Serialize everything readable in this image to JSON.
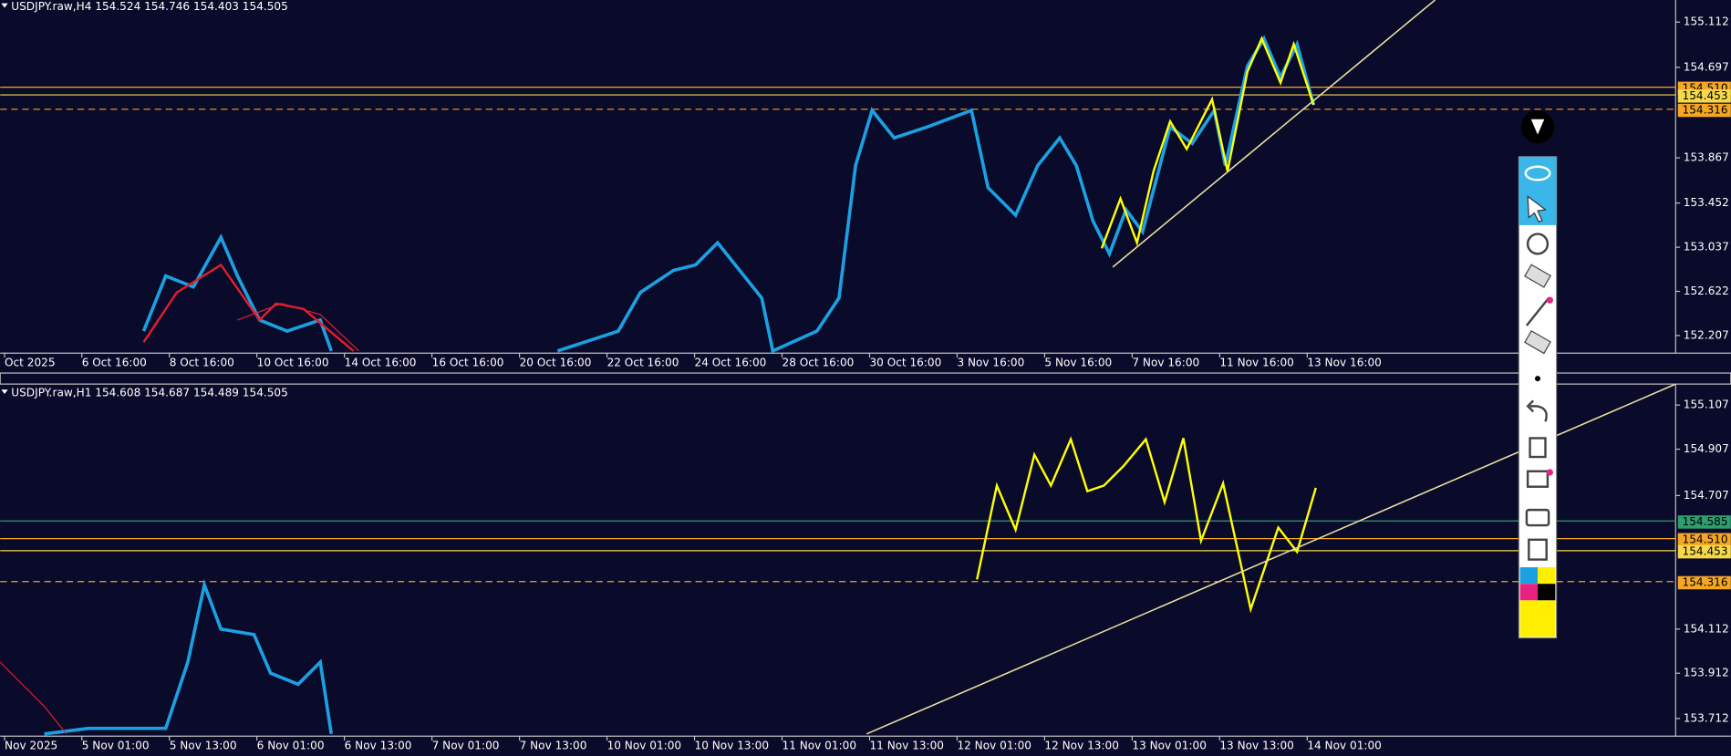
{
  "top_chart": {
    "header": "USDJPY.raw,H4  154.524 154.746 154.403 154.505",
    "price_labels": [
      "155.112",
      "154.697",
      "153.867",
      "153.452",
      "153.037",
      "152.622",
      "152.207"
    ],
    "price_tags": [
      {
        "label": "154.510",
        "color": "#f5a623"
      },
      {
        "label": "154.453",
        "color": "#f5d94a"
      },
      {
        "label": "154.316",
        "color": "#f5a623"
      }
    ],
    "time_labels": [
      "Oct 2025",
      "6 Oct 16:00",
      "8 Oct 16:00",
      "10 Oct 16:00",
      "14 Oct 16:00",
      "16 Oct 16:00",
      "20 Oct 16:00",
      "22 Oct 16:00",
      "24 Oct 16:00",
      "28 Oct 16:00",
      "30 Oct 16:00",
      "3 Nov 16:00",
      "5 Nov 16:00",
      "7 Nov 16:00",
      "11 Nov 16:00",
      "13 Nov 16:00"
    ]
  },
  "bottom_chart": {
    "header": "USDJPY.raw,H1  154.608 154.687 154.489 154.505",
    "price_labels": [
      "155.107",
      "154.907",
      "154.707",
      "154.112",
      "153.912",
      "153.712"
    ],
    "price_tags": [
      {
        "label": "154.585",
        "color": "#2e9e6e"
      },
      {
        "label": "154.510",
        "color": "#f5a623"
      },
      {
        "label": "154.453",
        "color": "#f5d94a"
      },
      {
        "label": "154.316",
        "color": "#f5a623"
      }
    ],
    "time_labels": [
      "Nov 2025",
      "5 Nov 01:00",
      "5 Nov 13:00",
      "6 Nov 01:00",
      "6 Nov 13:00",
      "7 Nov 01:00",
      "7 Nov 13:00",
      "10 Nov 01:00",
      "10 Nov 13:00",
      "11 Nov 01:00",
      "11 Nov 13:00",
      "12 Nov 01:00",
      "12 Nov 13:00",
      "13 Nov 01:00",
      "13 Nov 13:00",
      "14 Nov 01:00"
    ]
  }
}
